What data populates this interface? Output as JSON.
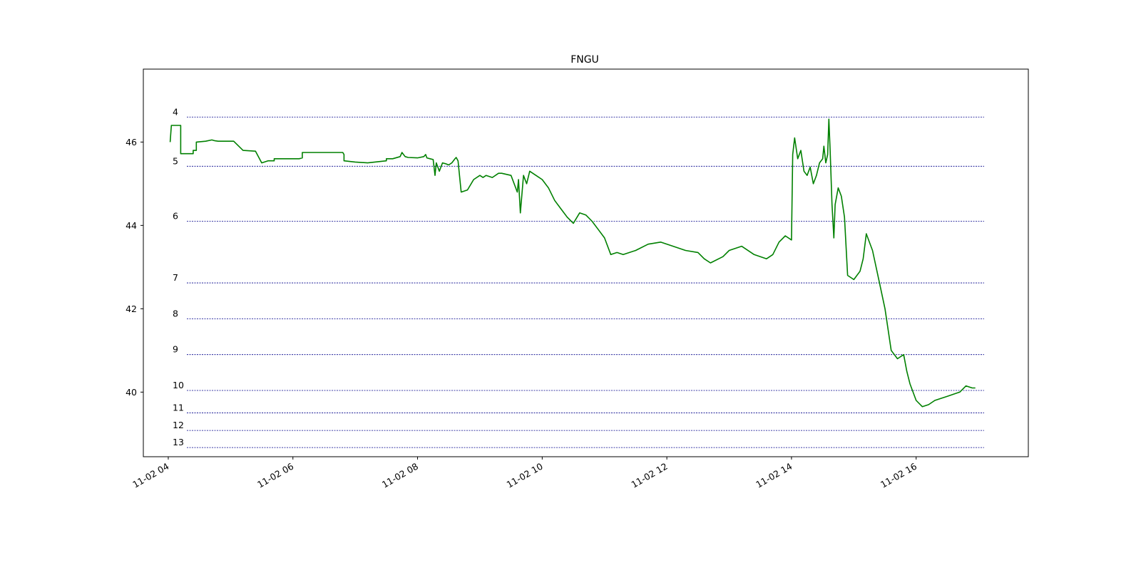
{
  "chart_data": {
    "type": "line",
    "title": "FNGU",
    "xlabel": "",
    "ylabel": "",
    "x_domain_hours": [
      3.6,
      17.8
    ],
    "ylim": [
      38.45,
      47.75
    ],
    "grid": false,
    "x_ticks": [
      {
        "hour": 4,
        "label": "11-02 04"
      },
      {
        "hour": 6,
        "label": "11-02 06"
      },
      {
        "hour": 8,
        "label": "11-02 08"
      },
      {
        "hour": 10,
        "label": "11-02 10"
      },
      {
        "hour": 12,
        "label": "11-02 12"
      },
      {
        "hour": 14,
        "label": "11-02 14"
      },
      {
        "hour": 16,
        "label": "11-02 16"
      }
    ],
    "y_ticks": [
      40,
      42,
      44,
      46
    ],
    "levels": [
      {
        "label": "4",
        "y": 46.6
      },
      {
        "label": "5",
        "y": 45.42
      },
      {
        "label": "6",
        "y": 44.1
      },
      {
        "label": "7",
        "y": 42.62
      },
      {
        "label": "8",
        "y": 41.76
      },
      {
        "label": "9",
        "y": 40.9
      },
      {
        "label": "10",
        "y": 40.04
      },
      {
        "label": "11",
        "y": 39.5
      },
      {
        "label": "12",
        "y": 39.08
      },
      {
        "label": "13",
        "y": 38.67
      }
    ],
    "level_color": "#00008b",
    "series": [
      {
        "color": "#008000",
        "x": [
          4.03,
          4.05,
          4.2,
          4.2,
          4.4,
          4.4,
          4.45,
          4.45,
          4.6,
          4.7,
          4.75,
          4.8,
          5.05,
          5.2,
          5.4,
          5.5,
          5.5,
          5.6,
          5.7,
          5.7,
          5.9,
          6.1,
          6.15,
          6.15,
          6.4,
          6.6,
          6.8,
          6.82,
          6.82,
          7.0,
          7.2,
          7.5,
          7.5,
          7.6,
          7.72,
          7.75,
          7.8,
          7.85,
          8.0,
          8.1,
          8.13,
          8.15,
          8.2,
          8.25,
          8.28,
          8.3,
          8.35,
          8.4,
          8.45,
          8.5,
          8.55,
          8.6,
          8.62,
          8.65,
          8.7,
          8.8,
          8.9,
          9.0,
          9.05,
          9.1,
          9.2,
          9.3,
          9.35,
          9.5,
          9.6,
          9.62,
          9.65,
          9.7,
          9.75,
          9.8,
          9.9,
          10.0,
          10.1,
          10.2,
          10.3,
          10.4,
          10.5,
          10.6,
          10.7,
          10.8,
          10.9,
          11.0,
          11.1,
          11.2,
          11.3,
          11.5,
          11.7,
          11.9,
          12.1,
          12.3,
          12.5,
          12.6,
          12.7,
          12.9,
          13.0,
          13.2,
          13.4,
          13.5,
          13.6,
          13.7,
          13.8,
          13.9,
          14.0,
          14.02,
          14.05,
          14.1,
          14.15,
          14.2,
          14.25,
          14.3,
          14.35,
          14.4,
          14.45,
          14.5,
          14.52,
          14.55,
          14.58,
          14.6,
          14.62,
          14.65,
          14.68,
          14.7,
          14.75,
          14.8,
          14.85,
          14.9,
          15.0,
          15.1,
          15.15,
          15.2,
          15.3,
          15.4,
          15.5,
          15.6,
          15.7,
          15.8,
          15.85,
          15.9,
          16.0,
          16.1,
          16.2,
          16.3,
          16.4,
          16.5,
          16.6,
          16.7,
          16.8,
          16.9,
          16.95
        ],
        "y": [
          46.0,
          46.4,
          46.4,
          45.72,
          45.72,
          45.8,
          45.8,
          46.0,
          46.02,
          46.05,
          46.03,
          46.02,
          46.02,
          45.8,
          45.78,
          45.5,
          45.5,
          45.55,
          45.55,
          45.6,
          45.6,
          45.6,
          45.62,
          45.75,
          45.75,
          45.75,
          45.75,
          45.7,
          45.55,
          45.52,
          45.5,
          45.55,
          45.6,
          45.6,
          45.65,
          45.75,
          45.65,
          45.63,
          45.62,
          45.65,
          45.7,
          45.62,
          45.6,
          45.58,
          45.2,
          45.5,
          45.3,
          45.5,
          45.48,
          45.45,
          45.5,
          45.6,
          45.63,
          45.55,
          44.8,
          44.85,
          45.1,
          45.2,
          45.15,
          45.2,
          45.15,
          45.25,
          45.25,
          45.2,
          44.8,
          45.1,
          44.3,
          45.2,
          45.0,
          45.3,
          45.2,
          45.1,
          44.9,
          44.6,
          44.4,
          44.2,
          44.05,
          44.3,
          44.25,
          44.1,
          43.9,
          43.7,
          43.3,
          43.35,
          43.3,
          43.4,
          43.55,
          43.6,
          43.5,
          43.4,
          43.35,
          43.2,
          43.1,
          43.25,
          43.4,
          43.5,
          43.3,
          43.25,
          43.2,
          43.3,
          43.6,
          43.75,
          43.65,
          45.7,
          46.1,
          45.6,
          45.8,
          45.3,
          45.2,
          45.4,
          45.0,
          45.2,
          45.5,
          45.6,
          45.9,
          45.5,
          45.7,
          46.55,
          45.8,
          44.5,
          43.7,
          44.5,
          44.9,
          44.7,
          44.2,
          42.8,
          42.7,
          42.9,
          43.2,
          43.8,
          43.4,
          42.7,
          42.0,
          41.0,
          40.8,
          40.9,
          40.5,
          40.2,
          39.8,
          39.65,
          39.7,
          39.8,
          39.85,
          39.9,
          39.95,
          40.0,
          40.15,
          40.1,
          40.1
        ]
      }
    ]
  }
}
